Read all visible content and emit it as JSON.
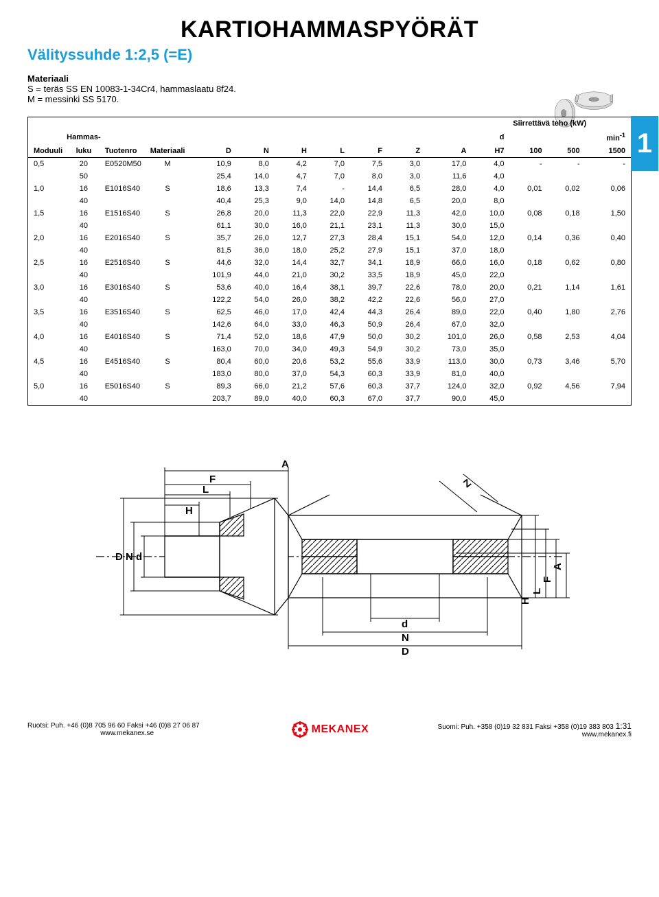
{
  "page": {
    "title": "KARTIOHAMMASPYÖRÄT",
    "subtitle": "Välityssuhde 1:2,5 (=E)",
    "material_label": "Materiaali",
    "material_line1": "S = teräs SS EN 10083-1-34Cr4, hammaslaatu 8f24.",
    "material_line2": "M = messinki SS 5170.",
    "side_tab": "1"
  },
  "table": {
    "header_top_right1": "Siirrettävä teho (kW)",
    "header_top_right2_left": "d",
    "header_top_right2_right": "min",
    "header_top_right2_sup": "-1",
    "columns": [
      "Moduuli",
      "Hammas-\nluku",
      "Tuotenro",
      "Materiaali",
      "D",
      "N",
      "H",
      "L",
      "F",
      "Z",
      "A",
      "H7",
      "100",
      "500",
      "1500"
    ],
    "rows": [
      [
        "0,5",
        "20",
        "E0520M50",
        "M",
        "10,9",
        "8,0",
        "4,2",
        "7,0",
        "7,5",
        "3,0",
        "17,0",
        "4,0",
        "-",
        "-",
        "-"
      ],
      [
        "",
        "50",
        "",
        "",
        "25,4",
        "14,0",
        "4,7",
        "7,0",
        "8,0",
        "3,0",
        "11,6",
        "4,0",
        "",
        "",
        ""
      ],
      [
        "1,0",
        "16",
        "E1016S40",
        "S",
        "18,6",
        "13,3",
        "7,4",
        "-",
        "14,4",
        "6,5",
        "28,0",
        "4,0",
        "0,01",
        "0,02",
        "0,06"
      ],
      [
        "",
        "40",
        "",
        "",
        "40,4",
        "25,3",
        "9,0",
        "14,0",
        "14,8",
        "6,5",
        "20,0",
        "8,0",
        "",
        "",
        ""
      ],
      [
        "1,5",
        "16",
        "E1516S40",
        "S",
        "26,8",
        "20,0",
        "11,3",
        "22,0",
        "22,9",
        "11,3",
        "42,0",
        "10,0",
        "0,08",
        "0,18",
        "1,50"
      ],
      [
        "",
        "40",
        "",
        "",
        "61,1",
        "30,0",
        "16,0",
        "21,1",
        "23,1",
        "11,3",
        "30,0",
        "15,0",
        "",
        "",
        ""
      ],
      [
        "2,0",
        "16",
        "E2016S40",
        "S",
        "35,7",
        "26,0",
        "12,7",
        "27,3",
        "28,4",
        "15,1",
        "54,0",
        "12,0",
        "0,14",
        "0,36",
        "0,40"
      ],
      [
        "",
        "40",
        "",
        "",
        "81,5",
        "36,0",
        "18,0",
        "25,2",
        "27,9",
        "15,1",
        "37,0",
        "18,0",
        "",
        "",
        ""
      ],
      [
        "2,5",
        "16",
        "E2516S40",
        "S",
        "44,6",
        "32,0",
        "14,4",
        "32,7",
        "34,1",
        "18,9",
        "66,0",
        "16,0",
        "0,18",
        "0,62",
        "0,80"
      ],
      [
        "",
        "40",
        "",
        "",
        "101,9",
        "44,0",
        "21,0",
        "30,2",
        "33,5",
        "18,9",
        "45,0",
        "22,0",
        "",
        "",
        ""
      ],
      [
        "3,0",
        "16",
        "E3016S40",
        "S",
        "53,6",
        "40,0",
        "16,4",
        "38,1",
        "39,7",
        "22,6",
        "78,0",
        "20,0",
        "0,21",
        "1,14",
        "1,61"
      ],
      [
        "",
        "40",
        "",
        "",
        "122,2",
        "54,0",
        "26,0",
        "38,2",
        "42,2",
        "22,6",
        "56,0",
        "27,0",
        "",
        "",
        ""
      ],
      [
        "3,5",
        "16",
        "E3516S40",
        "S",
        "62,5",
        "46,0",
        "17,0",
        "42,4",
        "44,3",
        "26,4",
        "89,0",
        "22,0",
        "0,40",
        "1,80",
        "2,76"
      ],
      [
        "",
        "40",
        "",
        "",
        "142,6",
        "64,0",
        "33,0",
        "46,3",
        "50,9",
        "26,4",
        "67,0",
        "32,0",
        "",
        "",
        ""
      ],
      [
        "4,0",
        "16",
        "E4016S40",
        "S",
        "71,4",
        "52,0",
        "18,6",
        "47,9",
        "50,0",
        "30,2",
        "101,0",
        "26,0",
        "0,58",
        "2,53",
        "4,04"
      ],
      [
        "",
        "40",
        "",
        "",
        "163,0",
        "70,0",
        "34,0",
        "49,3",
        "54,9",
        "30,2",
        "73,0",
        "35,0",
        "",
        "",
        ""
      ],
      [
        "4,5",
        "16",
        "E4516S40",
        "S",
        "80,4",
        "60,0",
        "20,6",
        "53,2",
        "55,6",
        "33,9",
        "113,0",
        "30,0",
        "0,73",
        "3,46",
        "5,70"
      ],
      [
        "",
        "40",
        "",
        "",
        "183,0",
        "80,0",
        "37,0",
        "54,3",
        "60,3",
        "33,9",
        "81,0",
        "40,0",
        "",
        "",
        ""
      ],
      [
        "5,0",
        "16",
        "E5016S40",
        "S",
        "89,3",
        "66,0",
        "21,2",
        "57,6",
        "60,3",
        "37,7",
        "124,0",
        "32,0",
        "0,92",
        "4,56",
        "7,94"
      ],
      [
        "",
        "40",
        "",
        "",
        "203,7",
        "89,0",
        "40,0",
        "60,3",
        "67,0",
        "37,7",
        "90,0",
        "45,0",
        "",
        "",
        ""
      ]
    ]
  },
  "diagram": {
    "labels": {
      "A": "A",
      "F": "F",
      "L": "L",
      "H": "H",
      "D": "D",
      "N": "N",
      "d": "d",
      "Z": "Z"
    }
  },
  "footer": {
    "left1": "Ruotsi: Puh. +46 (0)8 705 96 60 Faksi +46 (0)8 27 06 87",
    "left2": "www.mekanex.se",
    "brand": "MEKANEX",
    "right1": "Suomi: Puh. +358 (0)19 32 831 Faksi +358 (0)19 383 803",
    "pagenum": "1:31",
    "right2": "www.mekanex.fi"
  },
  "colors": {
    "accent": "#1a9dd9",
    "brand_red": "#e30613",
    "black": "#000000"
  }
}
